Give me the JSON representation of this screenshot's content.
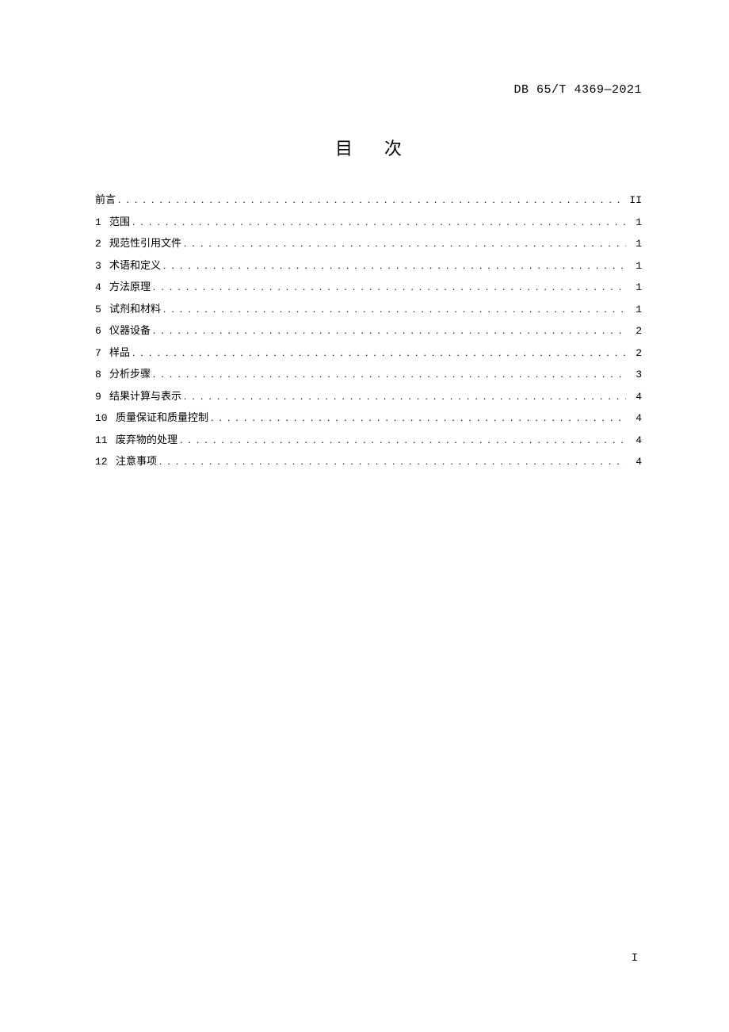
{
  "header": {
    "code": "DB 65/T 4369—2021"
  },
  "title": "目次",
  "dots": ". . . . . . . . . . . . . . . . . . . . . . . . . . . . . . . . . . . . . . . . . . . . . . . . . . . . . . . . . . . . . . . . . . . . . . . . . . . . . . . . . . . . . . . . . . . . . . . . . . . . . . . . . . . . . . . . . . . . . . . . . . . . . . . . . . . . . . . . . . . . . . . . . . . .",
  "toc": [
    {
      "num": "",
      "label": "前言",
      "page": "II"
    },
    {
      "num": "1",
      "label": "范围",
      "page": "1"
    },
    {
      "num": "2",
      "label": "规范性引用文件",
      "page": "1"
    },
    {
      "num": "3",
      "label": "术语和定义",
      "page": "1"
    },
    {
      "num": "4",
      "label": "方法原理",
      "page": "1"
    },
    {
      "num": "5",
      "label": "试剂和材料",
      "page": "1"
    },
    {
      "num": "6",
      "label": "仪器设备",
      "page": "2"
    },
    {
      "num": "7",
      "label": "样品",
      "page": "2"
    },
    {
      "num": "8",
      "label": "分析步骤",
      "page": "3"
    },
    {
      "num": "9",
      "label": "结果计算与表示",
      "page": "4"
    },
    {
      "num": "10",
      "label": "质量保证和质量控制",
      "page": "4"
    },
    {
      "num": "11",
      "label": "废弃物的处理",
      "page": "4"
    },
    {
      "num": "12",
      "label": "注意事项",
      "page": "4"
    }
  ],
  "footer": {
    "page_number": "I"
  }
}
